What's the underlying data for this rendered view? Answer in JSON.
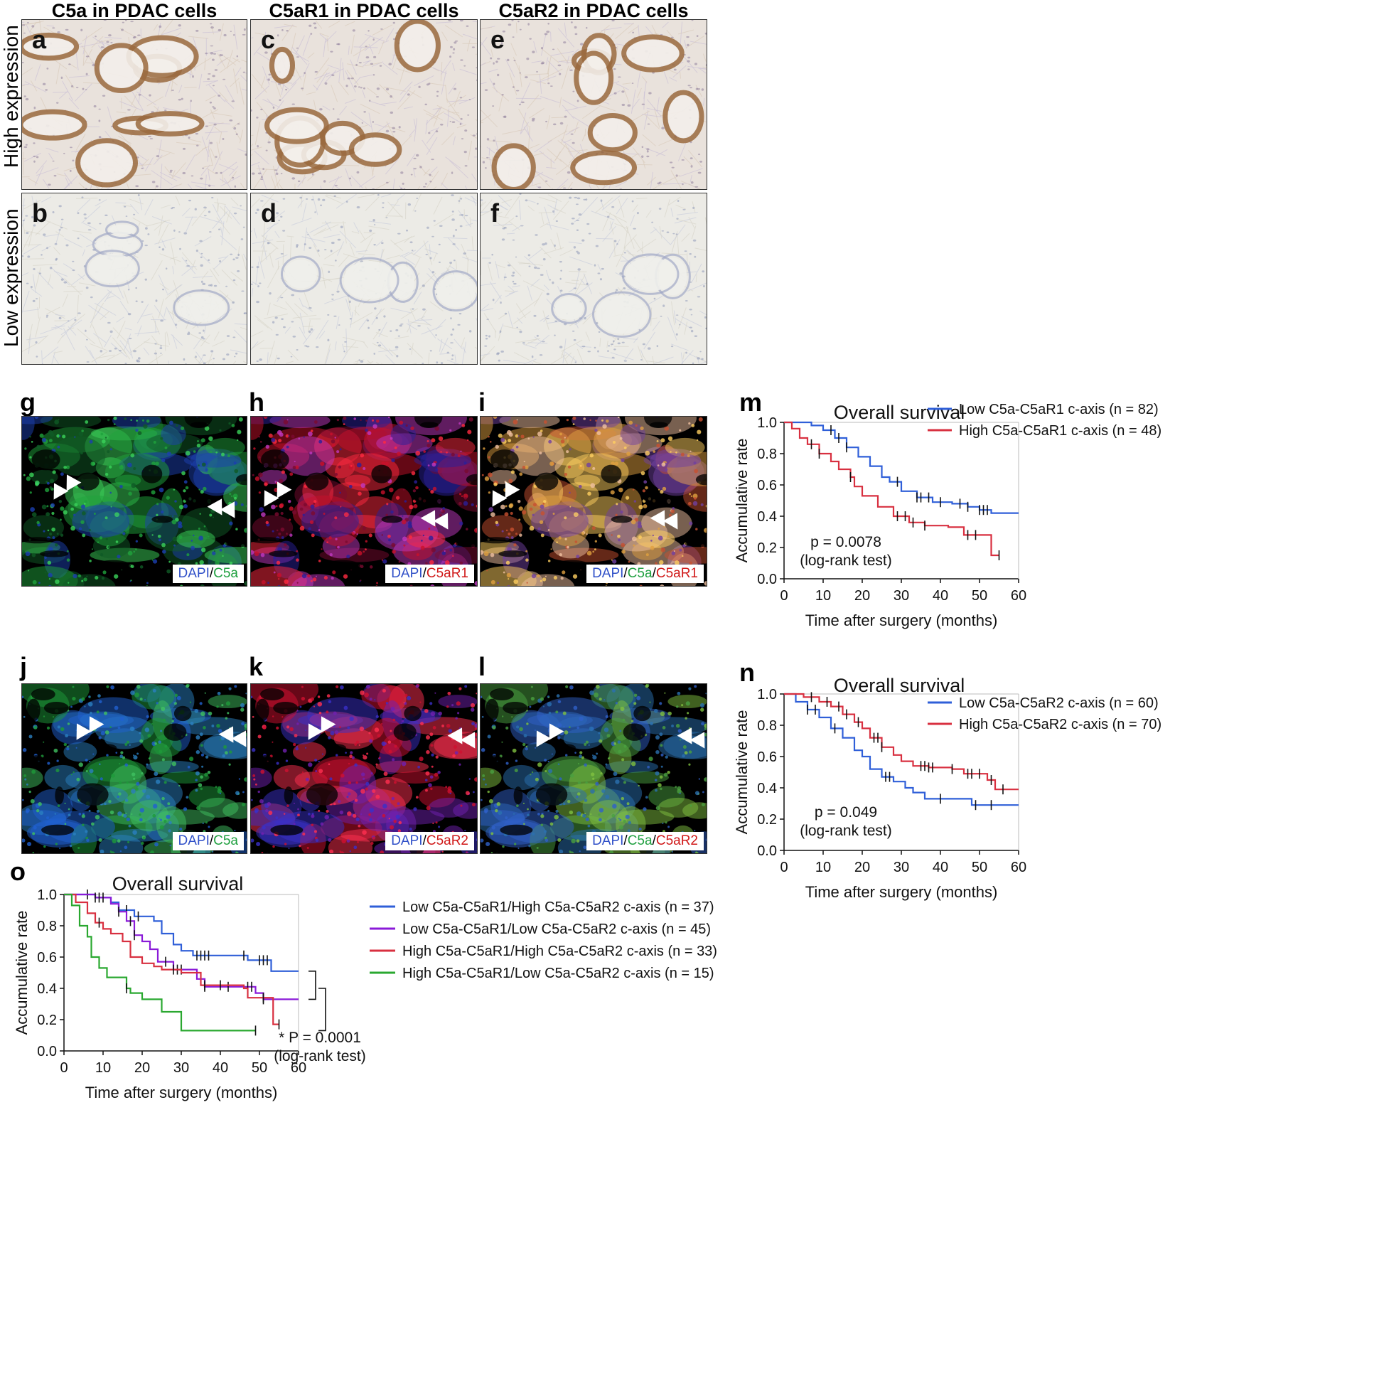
{
  "ihc": {
    "columns": [
      "C5a in PDAC cells",
      "C5aR1 in PDAC cells",
      "C5aR2 in PDAC cells"
    ],
    "rows": [
      "High expression",
      "Low expression"
    ],
    "panels": [
      {
        "label": "a",
        "col": 0,
        "row": 0,
        "stain": "high-brown"
      },
      {
        "label": "c",
        "col": 1,
        "row": 0,
        "stain": "high-brown"
      },
      {
        "label": "e",
        "col": 2,
        "row": 0,
        "stain": "high-brown"
      },
      {
        "label": "b",
        "col": 0,
        "row": 1,
        "stain": "low-blue"
      },
      {
        "label": "d",
        "col": 1,
        "row": 1,
        "stain": "low-blue"
      },
      {
        "label": "f",
        "col": 2,
        "row": 1,
        "stain": "low-blue"
      }
    ]
  },
  "fluor": {
    "row1": [
      {
        "label": "g",
        "channels": [
          "DAPI",
          "C5a"
        ],
        "colors": [
          "#3050c8",
          "#20a040"
        ]
      },
      {
        "label": "h",
        "channels": [
          "DAPI",
          "C5aR1"
        ],
        "colors": [
          "#3050c8",
          "#d01818"
        ]
      },
      {
        "label": "i",
        "channels": [
          "DAPI",
          "C5a",
          "C5aR1"
        ],
        "colors": [
          "#3050c8",
          "#20a040",
          "#d01818"
        ]
      }
    ],
    "row2": [
      {
        "label": "j",
        "channels": [
          "DAPI",
          "C5a"
        ],
        "colors": [
          "#3050c8",
          "#20a040"
        ]
      },
      {
        "label": "k",
        "channels": [
          "DAPI",
          "C5aR2"
        ],
        "colors": [
          "#3050c8",
          "#d01818"
        ]
      },
      {
        "label": "l",
        "channels": [
          "DAPI",
          "C5a",
          "C5aR2"
        ],
        "colors": [
          "#3050c8",
          "#20a040",
          "#d01818"
        ]
      }
    ]
  },
  "chart_data": [
    {
      "panel": "m",
      "type": "line",
      "title": "Overall survival",
      "xlabel": "Time after surgery (months)",
      "ylabel": "Accumulative rate",
      "xlim": [
        0,
        60
      ],
      "ylim": [
        0,
        1.0
      ],
      "xticks": [
        "0",
        "10",
        "20",
        "30",
        "40",
        "50",
        "60"
      ],
      "yticks": [
        "0.0",
        "0.2",
        "0.4",
        "0.6",
        "0.8",
        "1.0"
      ],
      "annotation": [
        "p = 0.0078",
        "(log-rank test)"
      ],
      "series": [
        {
          "name": "Low C5a-C5aR1 c-axis (n = 82)",
          "color": "#2f5fd8",
          "points": [
            [
              0,
              1.0
            ],
            [
              7,
              0.98
            ],
            [
              10,
              0.95
            ],
            [
              13,
              0.9
            ],
            [
              16,
              0.84
            ],
            [
              19,
              0.78
            ],
            [
              22,
              0.72
            ],
            [
              25,
              0.65
            ],
            [
              27,
              0.62
            ],
            [
              30,
              0.56
            ],
            [
              34,
              0.52
            ],
            [
              38,
              0.49
            ],
            [
              43,
              0.48
            ],
            [
              47,
              0.46
            ],
            [
              50,
              0.44
            ],
            [
              53,
              0.42
            ],
            [
              60,
              0.42
            ]
          ],
          "censor": [
            12,
            14,
            16,
            29,
            34,
            35,
            37,
            40,
            45,
            47,
            50,
            51,
            52
          ]
        },
        {
          "name": "High C5a-C5aR1 c-axis (n = 48)",
          "color": "#d83040",
          "points": [
            [
              0,
              1.0
            ],
            [
              2,
              0.96
            ],
            [
              4,
              0.9
            ],
            [
              6,
              0.86
            ],
            [
              9,
              0.8
            ],
            [
              12,
              0.75
            ],
            [
              14,
              0.7
            ],
            [
              17,
              0.65
            ],
            [
              18,
              0.59
            ],
            [
              20,
              0.53
            ],
            [
              24,
              0.46
            ],
            [
              28,
              0.4
            ],
            [
              32,
              0.36
            ],
            [
              36,
              0.34
            ],
            [
              42,
              0.33
            ],
            [
              46,
              0.28
            ],
            [
              53,
              0.15
            ],
            [
              55,
              0.15
            ]
          ],
          "censor": [
            7,
            9,
            17,
            29,
            31,
            33,
            36,
            47,
            49,
            55
          ]
        }
      ]
    },
    {
      "panel": "n",
      "type": "line",
      "title": "Overall survival",
      "xlabel": "Time after surgery (months)",
      "ylabel": "Accumulative rate",
      "xlim": [
        0,
        60
      ],
      "ylim": [
        0,
        1.0
      ],
      "xticks": [
        "0",
        "10",
        "20",
        "30",
        "40",
        "50",
        "60"
      ],
      "yticks": [
        "0.0",
        "0.2",
        "0.4",
        "0.6",
        "0.8",
        "1.0"
      ],
      "annotation": [
        "p = 0.049",
        "(log-rank test)"
      ],
      "series": [
        {
          "name": "Low C5a-C5aR2 c-axis (n = 60)",
          "color": "#2f5fd8",
          "points": [
            [
              0,
              1.0
            ],
            [
              3,
              0.95
            ],
            [
              6,
              0.9
            ],
            [
              9,
              0.85
            ],
            [
              12,
              0.78
            ],
            [
              15,
              0.72
            ],
            [
              18,
              0.64
            ],
            [
              20,
              0.6
            ],
            [
              22,
              0.52
            ],
            [
              25,
              0.47
            ],
            [
              28,
              0.44
            ],
            [
              31,
              0.4
            ],
            [
              33,
              0.37
            ],
            [
              36,
              0.33
            ],
            [
              44,
              0.33
            ],
            [
              48,
              0.29
            ],
            [
              60,
              0.29
            ]
          ],
          "censor": [
            6,
            8,
            13,
            26,
            27,
            40,
            49,
            53
          ]
        },
        {
          "name": "High C5a-C5aR2 c-axis (n = 70)",
          "color": "#d83040",
          "points": [
            [
              0,
              1.0
            ],
            [
              5,
              0.98
            ],
            [
              9,
              0.95
            ],
            [
              12,
              0.92
            ],
            [
              15,
              0.87
            ],
            [
              18,
              0.82
            ],
            [
              20,
              0.78
            ],
            [
              22,
              0.72
            ],
            [
              25,
              0.66
            ],
            [
              28,
              0.61
            ],
            [
              30,
              0.57
            ],
            [
              33,
              0.54
            ],
            [
              37,
              0.53
            ],
            [
              43,
              0.52
            ],
            [
              46,
              0.49
            ],
            [
              52,
              0.45
            ],
            [
              54,
              0.39
            ],
            [
              60,
              0.39
            ]
          ],
          "censor": [
            7,
            11,
            14,
            16,
            19,
            23,
            24,
            25,
            35,
            36,
            37,
            38,
            43,
            47,
            48,
            50,
            53,
            56
          ]
        }
      ]
    },
    {
      "panel": "o",
      "type": "line",
      "title": "Overall survival",
      "xlabel": "Time after surgery (months)",
      "ylabel": "Accumulative rate",
      "xlim": [
        0,
        60
      ],
      "ylim": [
        0,
        1.0
      ],
      "xticks": [
        "0",
        "10",
        "20",
        "30",
        "40",
        "50",
        "60"
      ],
      "yticks": [
        "0.0",
        "0.2",
        "0.4",
        "0.6",
        "0.8",
        "1.0"
      ],
      "annotation": [
        "* P = 0.0001",
        "(log-rank test)"
      ],
      "series": [
        {
          "name": "Low C5a-C5aR1/High C5a-C5aR2 c-axis (n = 37)",
          "color": "#2f5fd8",
          "points": [
            [
              0,
              1.0
            ],
            [
              8,
              0.98
            ],
            [
              12,
              0.95
            ],
            [
              14,
              0.9
            ],
            [
              18,
              0.86
            ],
            [
              23,
              0.83
            ],
            [
              25,
              0.75
            ],
            [
              28,
              0.68
            ],
            [
              30,
              0.64
            ],
            [
              33,
              0.61
            ],
            [
              46,
              0.61
            ],
            [
              47,
              0.58
            ],
            [
              53,
              0.51
            ],
            [
              60,
              0.51
            ]
          ],
          "censor": [
            6,
            16,
            19,
            34,
            35,
            36,
            37,
            46,
            50,
            51,
            52
          ]
        },
        {
          "name": "Low C5a-C5aR1/Low C5a-C5aR2 c-axis (n = 45)",
          "color": "#8a1ad8",
          "points": [
            [
              0,
              1.0
            ],
            [
              8,
              0.98
            ],
            [
              12,
              0.94
            ],
            [
              14,
              0.89
            ],
            [
              16,
              0.83
            ],
            [
              18,
              0.74
            ],
            [
              20,
              0.7
            ],
            [
              22,
              0.65
            ],
            [
              24,
              0.57
            ],
            [
              28,
              0.52
            ],
            [
              34,
              0.46
            ],
            [
              36,
              0.41
            ],
            [
              47,
              0.41
            ],
            [
              49,
              0.37
            ],
            [
              51,
              0.33
            ],
            [
              60,
              0.33
            ]
          ],
          "censor": [
            8,
            9,
            10,
            14,
            17,
            18,
            26,
            29,
            30,
            36,
            42,
            47,
            48,
            51
          ]
        },
        {
          "name": "High C5a-C5aR1/High C5a-C5aR2 c-axis (n = 33)",
          "color": "#d83040",
          "points": [
            [
              0,
              1.0
            ],
            [
              3,
              0.95
            ],
            [
              6,
              0.88
            ],
            [
              8,
              0.82
            ],
            [
              10,
              0.78
            ],
            [
              12,
              0.75
            ],
            [
              15,
              0.7
            ],
            [
              17,
              0.6
            ],
            [
              20,
              0.56
            ],
            [
              23,
              0.54
            ],
            [
              25,
              0.52
            ],
            [
              30,
              0.5
            ],
            [
              35,
              0.42
            ],
            [
              46,
              0.4
            ],
            [
              47,
              0.34
            ],
            [
              53,
              0.34
            ],
            [
              53.5,
              0.17
            ],
            [
              55,
              0.17
            ]
          ],
          "censor": [
            9,
            28,
            36,
            40,
            51,
            55
          ]
        },
        {
          "name": "High C5a-C5aR1/Low C5a-C5aR2 c-axis (n = 15)",
          "color": "#2aa830",
          "points": [
            [
              0,
              1.0
            ],
            [
              2,
              0.93
            ],
            [
              4,
              0.8
            ],
            [
              6,
              0.73
            ],
            [
              7,
              0.6
            ],
            [
              9,
              0.53
            ],
            [
              11,
              0.47
            ],
            [
              16,
              0.4
            ],
            [
              17,
              0.37
            ],
            [
              20,
              0.33
            ],
            [
              25,
              0.25
            ],
            [
              30,
              0.13
            ],
            [
              49,
              0.13
            ]
          ],
          "censor": [
            16,
            49
          ]
        }
      ]
    }
  ]
}
